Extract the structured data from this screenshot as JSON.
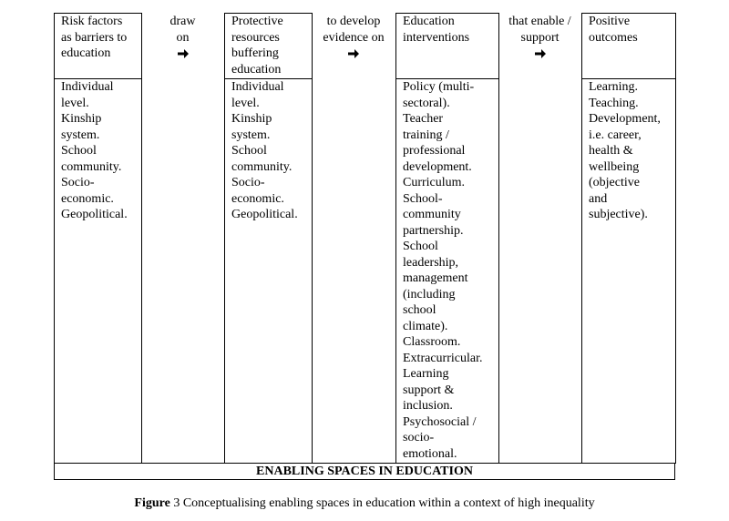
{
  "boxes": [
    {
      "header": [
        "Risk factors",
        "as barriers to",
        "education"
      ],
      "body": [
        "Individual",
        "level.",
        "Kinship",
        "system.",
        "School",
        "community.",
        "Socio-",
        "economic.",
        "Geopolitical."
      ]
    },
    {
      "header": [
        "Protective",
        "resources",
        "buffering",
        "education"
      ],
      "body": [
        "Individual",
        "level.",
        "Kinship",
        "system.",
        "School",
        "community.",
        "Socio-",
        "economic.",
        "Geopolitical."
      ]
    },
    {
      "header": [
        "Education",
        "interventions"
      ],
      "body": [
        "Policy (multi-",
        "sectoral).",
        "Teacher",
        "training /",
        "professional",
        "development.",
        "Curriculum.",
        "School-",
        "community",
        "partnership.",
        "School",
        "leadership,",
        "management",
        "(including",
        "school",
        "climate).",
        "Classroom.",
        "Extracurricular.",
        "Learning",
        "support &",
        "inclusion.",
        "Psychosocial /",
        "socio-",
        "emotional."
      ]
    },
    {
      "header": [
        "Positive",
        "outcomes"
      ],
      "body": [
        "Learning.",
        "Teaching.",
        "Development,",
        "i.e. career,",
        "health &",
        "wellbeing",
        "(objective",
        "and",
        "subjective)."
      ]
    }
  ],
  "connectors": [
    {
      "label": [
        "draw",
        "on"
      ]
    },
    {
      "label": [
        "to develop",
        "evidence on"
      ]
    },
    {
      "label": [
        "that enable /",
        "support"
      ]
    }
  ],
  "footer": "ENABLING SPACES IN EDUCATION",
  "caption": {
    "label": "Figure",
    "text": "3 Conceptualising enabling spaces in education within a context of high inequality"
  }
}
